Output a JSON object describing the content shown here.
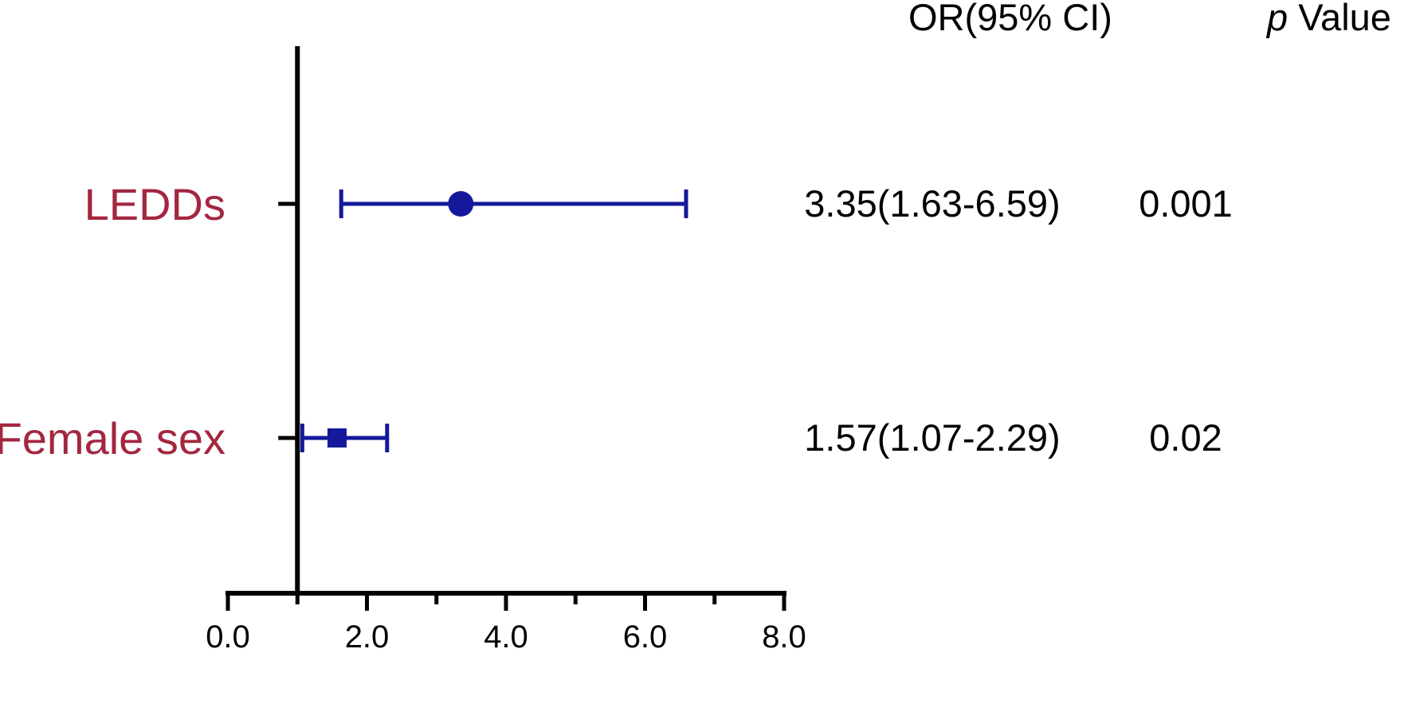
{
  "chart_data": {
    "type": "forest",
    "columns": {
      "or_header": "OR(95% CI)",
      "p_header_italic": "p",
      "p_header_rest": " Value"
    },
    "x_axis": {
      "min": 0.0,
      "max": 8.0,
      "ticks": [
        0.0,
        2.0,
        4.0,
        6.0,
        8.0
      ],
      "tick_labels": [
        "0.0",
        "2.0",
        "4.0",
        "6.0",
        "8.0"
      ],
      "minor_ticks": [
        1.0,
        3.0,
        5.0,
        7.0
      ],
      "reference_line": 1.0
    },
    "rows": [
      {
        "label": "LEDDs",
        "or": 3.35,
        "ci_low": 1.63,
        "ci_high": 6.59,
        "or_text": "3.35(1.63-6.59)",
        "p_text": "0.001",
        "marker": "circle"
      },
      {
        "label": "Female sex",
        "or": 1.57,
        "ci_low": 1.07,
        "ci_high": 2.29,
        "or_text": "1.57(1.07-2.29)",
        "p_text": "0.02",
        "marker": "square"
      }
    ],
    "colors": {
      "marker": "#14189a",
      "label": "#a3273f",
      "axis": "#000000",
      "text": "#000000"
    }
  }
}
